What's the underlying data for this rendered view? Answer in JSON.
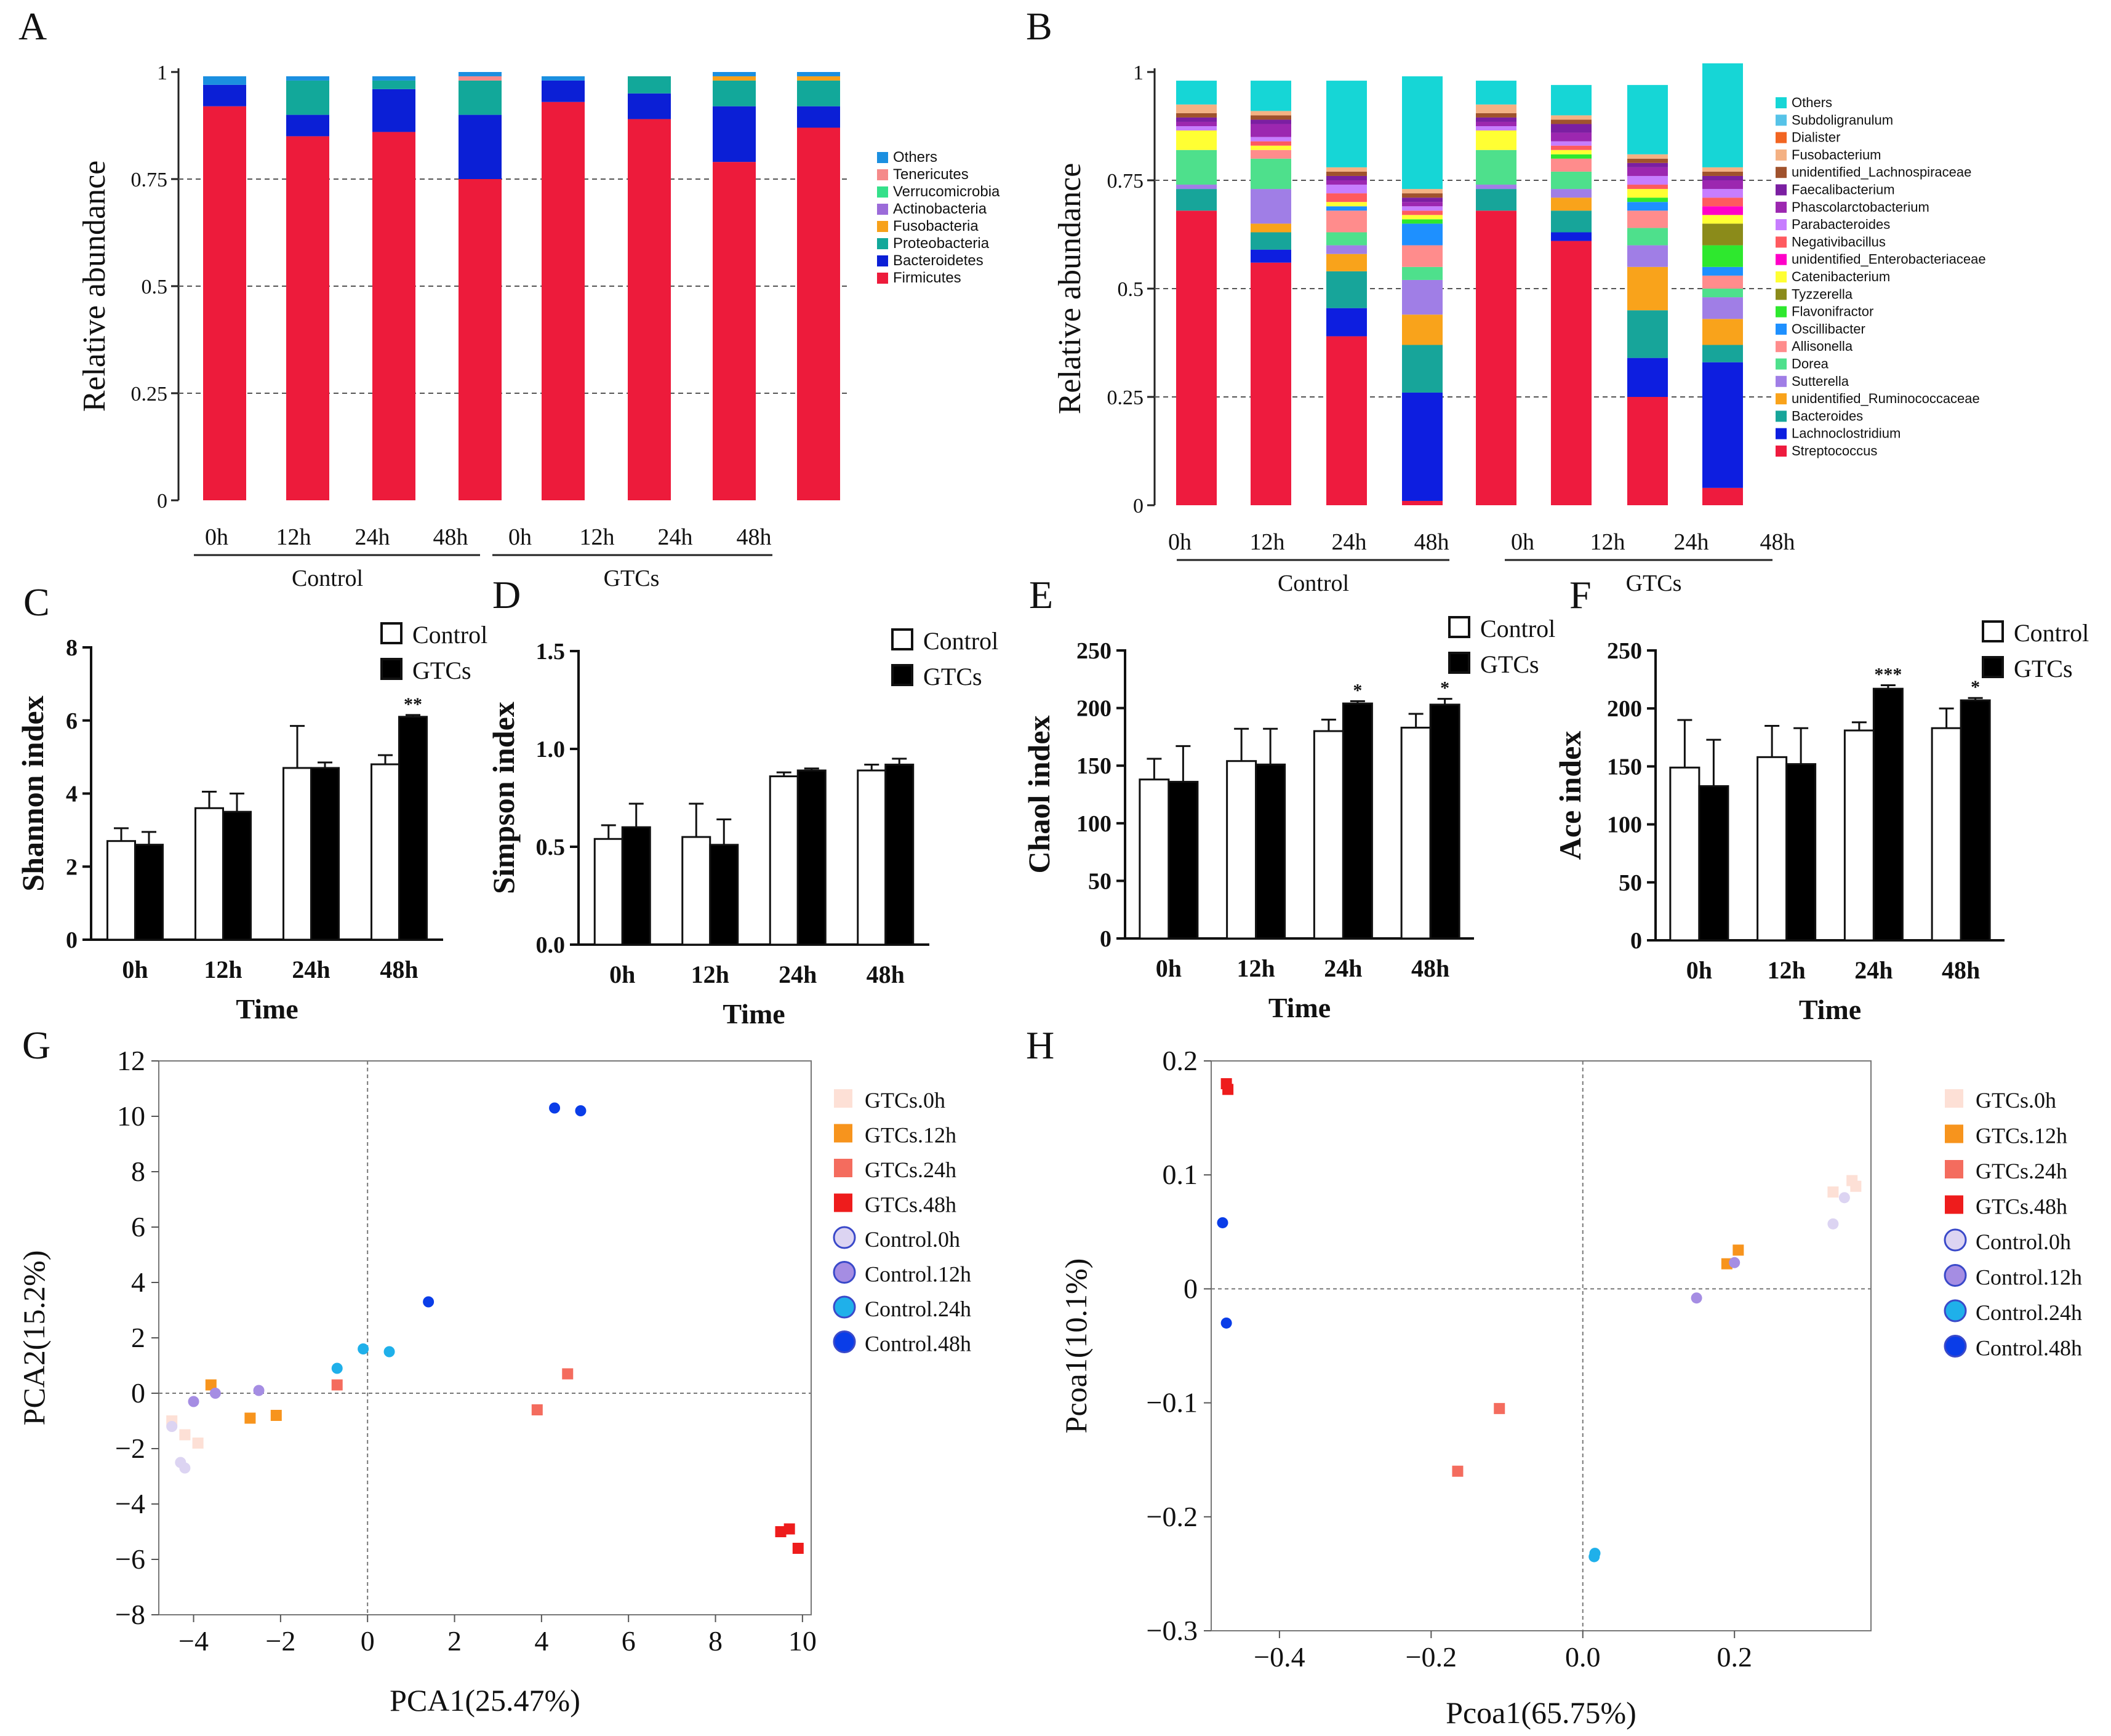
{
  "panels": {
    "A": {
      "label": "A",
      "chart_data": {
        "type": "stacked-bar",
        "ylabel": "Relative abundance",
        "yticks": [
          "0",
          "0.25",
          "0.5",
          "0.75",
          "1"
        ],
        "ylim": [
          0,
          1
        ],
        "bar_labels": [
          "0h",
          "12h",
          "24h",
          "48h",
          "0h",
          "12h",
          "24h",
          "48h"
        ],
        "groups": [
          "Control",
          "GTCs"
        ],
        "legend": [
          "Others",
          "Tenericutes",
          "Verrucomicrobia",
          "Actinobacteria",
          "Fusobacteria",
          "Proteobacteria",
          "Bacteroidetes",
          "Firmicutes"
        ],
        "stack_order": [
          "Firmicutes",
          "Bacteroidetes",
          "Proteobacteria",
          "Fusobacteria",
          "Actinobacteria",
          "Verrucomicrobia",
          "Tenericutes",
          "Others"
        ],
        "colors": [
          "#ed1b3b",
          "#0b1fd6",
          "#12a89a",
          "#f7a11a",
          "#9b6bd9",
          "#34e08a",
          "#f58a8a",
          "#1b8fe0"
        ],
        "values": [
          [
            0.92,
            0.05,
            0.0,
            0.0,
            0.0,
            0.0,
            0.0,
            0.02
          ],
          [
            0.85,
            0.05,
            0.08,
            0.0,
            0.0,
            0.0,
            0.0,
            0.01
          ],
          [
            0.86,
            0.1,
            0.02,
            0.0,
            0.0,
            0.0,
            0.0,
            0.01
          ],
          [
            0.75,
            0.15,
            0.08,
            0.0,
            0.0,
            0.0,
            0.01,
            0.01
          ],
          [
            0.93,
            0.05,
            0.0,
            0.0,
            0.0,
            0.0,
            0.0,
            0.01
          ],
          [
            0.89,
            0.06,
            0.04,
            0.0,
            0.0,
            0.0,
            0.0,
            0.0
          ],
          [
            0.79,
            0.13,
            0.06,
            0.01,
            0.0,
            0.0,
            0.0,
            0.01
          ],
          [
            0.87,
            0.05,
            0.06,
            0.01,
            0.0,
            0.0,
            0.0,
            0.01
          ]
        ]
      }
    },
    "B": {
      "label": "B",
      "chart_data": {
        "type": "stacked-bar",
        "ylabel": "Relative abundance",
        "yticks": [
          "0",
          "0.25",
          "0.5",
          "0.75",
          "1"
        ],
        "ylim": [
          0,
          1
        ],
        "bar_labels": [
          "0h",
          "12h",
          "24h",
          "48h",
          "0h",
          "12h",
          "24h",
          "48h"
        ],
        "groups": [
          "Control",
          "GTCs"
        ],
        "legend": [
          "Others",
          "Subdoligranulum",
          "Dialister",
          "Fusobacterium",
          "unidentified_Lachnospiraceae",
          "Faecalibacterium",
          "Phascolarctobacterium",
          "Parabacteroides",
          "Negativibacillus",
          "unidentified_Enterobacteriaceae",
          "Catenibacterium",
          "Tyzzerella",
          "Flavonifractor",
          "Oscillibacter",
          "Allisonella",
          "Dorea",
          "Sutterella",
          "unidentified_Ruminococcaceae",
          "Bacteroides",
          "Lachnoclostridium",
          "Streptococcus"
        ],
        "legend_colors": [
          "#16d6d6",
          "#56c3e8",
          "#f26522",
          "#f4b183",
          "#a0522d",
          "#7b1fa2",
          "#9c27b0",
          "#c77dff",
          "#ff5a5f",
          "#ff00c8",
          "#ffff33",
          "#8b8b1a",
          "#2ee82e",
          "#1e90ff",
          "#ff8c8c",
          "#4ee08c",
          "#a07ee6",
          "#f9a31b",
          "#17a59a",
          "#0d1ee0",
          "#ee1b3e"
        ],
        "stack_order": [
          "Streptococcus",
          "Lachnoclostridium",
          "Bacteroides",
          "unidentified_Ruminococcaceae",
          "Sutterella",
          "Dorea",
          "Allisonella",
          "Oscillibacter",
          "Flavonifractor",
          "Tyzzerella",
          "Catenibacterium",
          "unidentified_Enterobacteriaceae",
          "Negativibacillus",
          "Parabacteroides",
          "Phascolarctobacterium",
          "Faecalibacterium",
          "unidentified_Lachnospiraceae",
          "Fusobacterium",
          "Dialister",
          "Subdoligranulum",
          "Others"
        ],
        "stack_colors": [
          "#ee1b3e",
          "#0d1ee0",
          "#17a59a",
          "#f9a31b",
          "#a07ee6",
          "#4ee08c",
          "#ff8c8c",
          "#1e90ff",
          "#2ee82e",
          "#8b8b1a",
          "#ffff33",
          "#ff00c8",
          "#ff5a5f",
          "#c77dff",
          "#9c27b0",
          "#7b1fa2",
          "#a0522d",
          "#f4b183",
          "#f26522",
          "#56c3e8",
          "#16d6d6"
        ],
        "values": [
          [
            0.68,
            0.0,
            0.05,
            0.0,
            0.01,
            0.08,
            0.0,
            0.0,
            0.0,
            0.0,
            0.045,
            0.0,
            0.0,
            0.01,
            0.01,
            0.01,
            0.01,
            0.02,
            0.0,
            0.0,
            0.055
          ],
          [
            0.56,
            0.03,
            0.04,
            0.02,
            0.08,
            0.07,
            0.02,
            0.0,
            0.0,
            0.0,
            0.01,
            0.0,
            0.01,
            0.01,
            0.03,
            0.01,
            0.01,
            0.01,
            0.0,
            0.0,
            0.07
          ],
          [
            0.39,
            0.065,
            0.085,
            0.04,
            0.02,
            0.03,
            0.05,
            0.01,
            0.0,
            0.0,
            0.01,
            0.0,
            0.02,
            0.02,
            0.01,
            0.01,
            0.01,
            0.01,
            0.0,
            0.0,
            0.2
          ],
          [
            0.01,
            0.25,
            0.11,
            0.07,
            0.08,
            0.03,
            0.05,
            0.05,
            0.01,
            0.0,
            0.01,
            0.0,
            0.01,
            0.01,
            0.01,
            0.01,
            0.01,
            0.01,
            0.0,
            0.0,
            0.26
          ],
          [
            0.68,
            0.0,
            0.05,
            0.0,
            0.01,
            0.08,
            0.0,
            0.0,
            0.0,
            0.0,
            0.045,
            0.0,
            0.0,
            0.01,
            0.01,
            0.01,
            0.01,
            0.02,
            0.0,
            0.0,
            0.055
          ],
          [
            0.61,
            0.02,
            0.05,
            0.03,
            0.02,
            0.04,
            0.03,
            0.0,
            0.01,
            0.0,
            0.01,
            0.0,
            0.01,
            0.01,
            0.02,
            0.02,
            0.01,
            0.01,
            0.0,
            0.0,
            0.07
          ],
          [
            0.25,
            0.09,
            0.11,
            0.1,
            0.05,
            0.04,
            0.04,
            0.02,
            0.01,
            0.0,
            0.02,
            0.0,
            0.01,
            0.02,
            0.02,
            0.01,
            0.01,
            0.01,
            0.0,
            0.0,
            0.16
          ],
          [
            0.04,
            0.29,
            0.04,
            0.06,
            0.05,
            0.02,
            0.03,
            0.02,
            0.05,
            0.05,
            0.02,
            0.02,
            0.02,
            0.02,
            0.02,
            0.01,
            0.01,
            0.01,
            0.0,
            0.0,
            0.24
          ]
        ]
      }
    },
    "C": {
      "label": "C",
      "chart_data": {
        "type": "bar",
        "ylabel": "Shannon index",
        "xlabel": "Time",
        "categories": [
          "0h",
          "12h",
          "24h",
          "48h"
        ],
        "yticks": [
          "0",
          "2",
          "4",
          "6",
          "8"
        ],
        "ylim": [
          0,
          8
        ],
        "series": [
          {
            "name": "Control",
            "values": [
              2.7,
              3.6,
              4.7,
              4.8
            ],
            "errors": [
              0.35,
              0.45,
              1.15,
              0.25
            ]
          },
          {
            "name": "GTCs",
            "values": [
              2.6,
              3.5,
              4.7,
              6.1
            ],
            "errors": [
              0.35,
              0.5,
              0.15,
              0.05
            ]
          }
        ],
        "significance": [
          "",
          "",
          "",
          "**"
        ]
      }
    },
    "D": {
      "label": "D",
      "chart_data": {
        "type": "bar",
        "ylabel": "Simpson index",
        "xlabel": "Time",
        "categories": [
          "0h",
          "12h",
          "24h",
          "48h"
        ],
        "yticks": [
          "0.0",
          "0.5",
          "1.0",
          "1.5"
        ],
        "ylim": [
          0,
          1.5
        ],
        "series": [
          {
            "name": "Control",
            "values": [
              0.54,
              0.55,
              0.86,
              0.89
            ],
            "errors": [
              0.07,
              0.17,
              0.02,
              0.03
            ]
          },
          {
            "name": "GTCs",
            "values": [
              0.6,
              0.51,
              0.89,
              0.92
            ],
            "errors": [
              0.12,
              0.13,
              0.01,
              0.03
            ]
          }
        ],
        "significance": [
          "",
          "",
          "",
          ""
        ]
      }
    },
    "E": {
      "label": "E",
      "chart_data": {
        "type": "bar",
        "ylabel": "Chaol index",
        "xlabel": "Time",
        "categories": [
          "0h",
          "12h",
          "24h",
          "48h"
        ],
        "yticks": [
          "0",
          "50",
          "100",
          "150",
          "200",
          "250"
        ],
        "ylim": [
          0,
          250
        ],
        "series": [
          {
            "name": "Control",
            "values": [
              138,
              154,
              180,
              183
            ],
            "errors": [
              18,
              28,
              10,
              12
            ]
          },
          {
            "name": "GTCs",
            "values": [
              136,
              151,
              204,
              203
            ],
            "errors": [
              31,
              31,
              2,
              5
            ]
          }
        ],
        "significance": [
          "",
          "",
          "*",
          "*"
        ]
      }
    },
    "F": {
      "label": "F",
      "chart_data": {
        "type": "bar",
        "ylabel": "Ace index",
        "xlabel": "Time",
        "categories": [
          "0h",
          "12h",
          "24h",
          "48h"
        ],
        "yticks": [
          "0",
          "50",
          "100",
          "150",
          "200",
          "250"
        ],
        "ylim": [
          0,
          250
        ],
        "series": [
          {
            "name": "Control",
            "values": [
              149,
              158,
              181,
              183
            ],
            "errors": [
              41,
              27,
              7,
              17
            ]
          },
          {
            "name": "GTCs",
            "values": [
              133,
              152,
              217,
              207
            ],
            "errors": [
              40,
              31,
              3,
              2
            ]
          }
        ],
        "significance": [
          "",
          "",
          "***",
          "*"
        ]
      }
    },
    "G": {
      "label": "G",
      "chart_data": {
        "type": "scatter",
        "xlabel": "PCA1(25.47%)",
        "ylabel": "PCA2(15.2%)",
        "xlim": [
          -4.8,
          10.2
        ],
        "ylim": [
          -8,
          12
        ],
        "xticks": [
          "−4",
          "−2",
          "0",
          "2",
          "4",
          "6",
          "8",
          "10"
        ],
        "yticks": [
          "−8",
          "−6",
          "−4",
          "−2",
          "0",
          "2",
          "4",
          "6",
          "8",
          "10",
          "12"
        ],
        "series": [
          {
            "name": "GTCs.0h",
            "color": "#fde0d6",
            "shape": "square",
            "points": [
              [
                -4.5,
                -1.0
              ],
              [
                -4.2,
                -1.5
              ],
              [
                -3.9,
                -1.8
              ]
            ]
          },
          {
            "name": "GTCs.12h",
            "color": "#f7941d",
            "shape": "square",
            "points": [
              [
                -3.6,
                0.3
              ],
              [
                -2.7,
                -0.9
              ],
              [
                -2.1,
                -0.8
              ]
            ]
          },
          {
            "name": "GTCs.24h",
            "color": "#f46c5e",
            "shape": "square",
            "points": [
              [
                -0.7,
                0.3
              ],
              [
                3.9,
                -0.6
              ],
              [
                4.6,
                0.7
              ]
            ]
          },
          {
            "name": "GTCs.48h",
            "color": "#ee1c1c",
            "shape": "square",
            "points": [
              [
                9.5,
                -5.0
              ],
              [
                9.7,
                -4.9
              ],
              [
                9.9,
                -5.6
              ]
            ]
          },
          {
            "name": "Control.0h",
            "color": "#dcd4f2",
            "shape": "circle",
            "points": [
              [
                -4.5,
                -1.2
              ],
              [
                -4.3,
                -2.5
              ],
              [
                -4.2,
                -2.7
              ]
            ]
          },
          {
            "name": "Control.12h",
            "color": "#a58de3",
            "shape": "circle",
            "points": [
              [
                -4.0,
                -0.3
              ],
              [
                -3.5,
                0.0
              ],
              [
                -2.5,
                0.1
              ]
            ]
          },
          {
            "name": "Control.24h",
            "color": "#1fb0ea",
            "shape": "circle",
            "points": [
              [
                -0.7,
                0.9
              ],
              [
                -0.1,
                1.6
              ],
              [
                0.5,
                1.5
              ]
            ]
          },
          {
            "name": "Control.48h",
            "color": "#0a3de8",
            "shape": "circle",
            "points": [
              [
                1.4,
                3.3
              ],
              [
                4.3,
                10.3
              ],
              [
                4.9,
                10.2
              ]
            ]
          }
        ]
      }
    },
    "H": {
      "label": "H",
      "chart_data": {
        "type": "scatter",
        "xlabel": "Pcoa1(65.75%)",
        "ylabel": "Pcoa1(10.1%)",
        "xlim": [
          -0.49,
          0.38
        ],
        "ylim": [
          -0.3,
          0.2
        ],
        "xticks": [
          "−0.4",
          "−0.2",
          "0.0",
          "0.2"
        ],
        "yticks": [
          "−0.3",
          "−0.2",
          "−0.1",
          "0",
          "0.1",
          "0.2"
        ],
        "series": [
          {
            "name": "GTCs.0h",
            "color": "#fde0d6",
            "shape": "square",
            "points": [
              [
                0.33,
                0.085
              ],
              [
                0.355,
                0.095
              ],
              [
                0.36,
                0.09
              ]
            ]
          },
          {
            "name": "GTCs.12h",
            "color": "#f7941d",
            "shape": "square",
            "points": [
              [
                0.19,
                0.022
              ],
              [
                0.205,
                0.034
              ]
            ]
          },
          {
            "name": "GTCs.24h",
            "color": "#f46c5e",
            "shape": "square",
            "points": [
              [
                -0.165,
                -0.16
              ],
              [
                -0.11,
                -0.105
              ]
            ]
          },
          {
            "name": "GTCs.48h",
            "color": "#ee1c1c",
            "shape": "square",
            "points": [
              [
                -0.47,
                0.18
              ],
              [
                -0.468,
                0.175
              ]
            ]
          },
          {
            "name": "Control.0h",
            "color": "#dcd4f2",
            "shape": "circle",
            "points": [
              [
                0.33,
                0.057
              ],
              [
                0.345,
                0.08
              ]
            ]
          },
          {
            "name": "Control.12h",
            "color": "#a58de3",
            "shape": "circle",
            "points": [
              [
                0.15,
                -0.008
              ],
              [
                0.2,
                0.023
              ]
            ]
          },
          {
            "name": "Control.24h",
            "color": "#1fb0ea",
            "shape": "circle",
            "points": [
              [
                0.015,
                -0.235
              ],
              [
                0.016,
                -0.232
              ]
            ]
          },
          {
            "name": "Control.48h",
            "color": "#0a3de8",
            "shape": "circle",
            "points": [
              [
                -0.475,
                0.058
              ],
              [
                -0.47,
                -0.03
              ]
            ]
          }
        ]
      }
    }
  }
}
